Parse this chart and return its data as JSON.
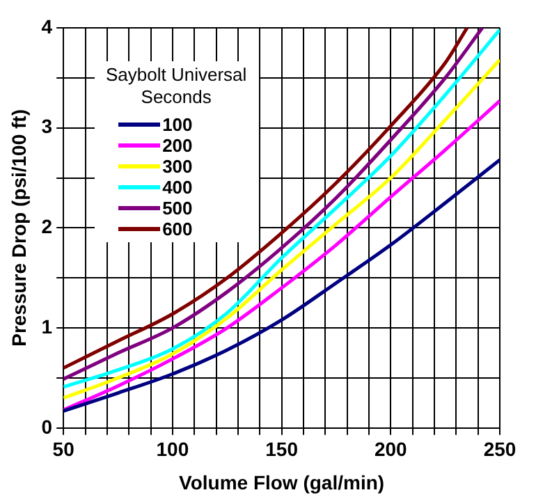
{
  "chart_data": {
    "type": "line",
    "xlabel": "Volume Flow (gal/min)",
    "ylabel": "Pressure Drop (psi/100 ft)",
    "legend_title": "Saybolt Universal Seconds",
    "legend": "top left",
    "grid": true,
    "marker": "none",
    "line_style": "solid",
    "xlim": [
      50,
      250
    ],
    "ylim": [
      0,
      4
    ],
    "xticks": [
      50,
      {
        "value": 60,
        "label": null
      },
      {
        "value": 70,
        "label": null
      },
      {
        "value": 80,
        "label": null
      },
      {
        "value": 90,
        "label": null
      },
      100,
      {
        "value": 110,
        "label": null
      },
      {
        "value": 120,
        "label": null
      },
      {
        "value": 130,
        "label": null
      },
      {
        "value": 140,
        "label": null
      },
      150,
      {
        "value": 160,
        "label": null
      },
      {
        "value": 170,
        "label": null
      },
      {
        "value": 180,
        "label": null
      },
      {
        "value": 190,
        "label": null
      },
      200,
      {
        "value": 210,
        "label": null
      },
      {
        "value": 220,
        "label": null
      },
      {
        "value": 230,
        "label": null
      },
      {
        "value": 240,
        "label": null
      },
      250
    ],
    "yticks": [
      0,
      {
        "value": 0.5,
        "label": null
      },
      1,
      {
        "value": 1.5,
        "label": null
      },
      2,
      {
        "value": 2.5,
        "label": null
      },
      3,
      {
        "value": 3.5,
        "label": null
      },
      4
    ],
    "series": [
      {
        "name": "100",
        "color": "#000080",
        "x": [
          50,
          75,
          100,
          125,
          150,
          175,
          200,
          225,
          250
        ],
        "values": [
          0.17,
          0.35,
          0.54,
          0.78,
          1.08,
          1.45,
          1.83,
          2.25,
          2.68
        ]
      },
      {
        "name": "200",
        "color": "#ff00ff",
        "x": [
          50,
          75,
          100,
          125,
          150,
          175,
          200,
          225,
          250
        ],
        "values": [
          0.18,
          0.42,
          0.69,
          1.0,
          1.4,
          1.83,
          2.31,
          2.78,
          3.27
        ]
      },
      {
        "name": "300",
        "color": "#ffff00",
        "x": [
          50,
          75,
          100,
          125,
          150,
          175,
          200,
          225,
          250
        ],
        "values": [
          0.3,
          0.5,
          0.74,
          1.1,
          1.58,
          2.04,
          2.5,
          3.08,
          3.68
        ]
      },
      {
        "name": "400",
        "color": "#00ffff",
        "x": [
          50,
          75,
          100,
          125,
          150,
          175,
          200,
          225,
          250
        ],
        "values": [
          0.41,
          0.58,
          0.79,
          1.15,
          1.7,
          2.2,
          2.72,
          3.33,
          3.98
        ]
      },
      {
        "name": "500",
        "color": "#800080",
        "x": [
          50,
          75,
          100,
          125,
          150,
          175,
          200,
          225,
          242
        ],
        "values": [
          0.49,
          0.75,
          1.0,
          1.36,
          1.8,
          2.3,
          2.88,
          3.5,
          4.0
        ]
      },
      {
        "name": "600",
        "color": "#800000",
        "x": [
          50,
          75,
          100,
          125,
          150,
          175,
          200,
          225,
          235
        ],
        "values": [
          0.6,
          0.87,
          1.14,
          1.5,
          1.95,
          2.45,
          3.02,
          3.65,
          4.0
        ]
      }
    ]
  }
}
